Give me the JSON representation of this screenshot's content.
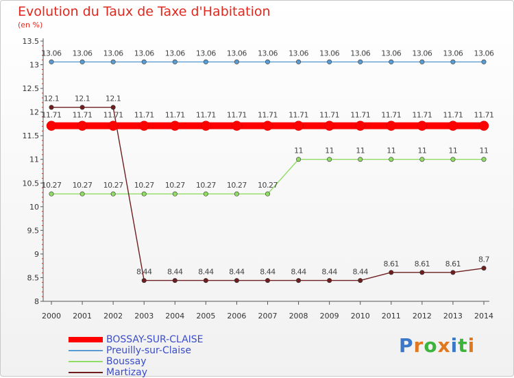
{
  "chart_data": {
    "type": "line",
    "title": "Evolution du Taux de Taxe d'Habitation",
    "subtitle": "(en %)",
    "ylim": [
      8,
      13.5
    ],
    "yticks": [
      "8",
      "8.5",
      "9",
      "9.5",
      "10",
      "10.5",
      "11",
      "11.5",
      "12",
      "12.5",
      "13",
      "13.5"
    ],
    "categories": [
      "2000",
      "2001",
      "2002",
      "2003",
      "2004",
      "2005",
      "2006",
      "2007",
      "2008",
      "2009",
      "2010",
      "2011",
      "2012",
      "2013",
      "2014"
    ],
    "series": [
      {
        "name": "BOSSAY-SUR-CLAISE",
        "color": "#ff0000",
        "emphasis": true,
        "values": [
          11.71,
          11.71,
          11.71,
          11.71,
          11.71,
          11.71,
          11.71,
          11.71,
          11.71,
          11.71,
          11.71,
          11.71,
          11.71,
          11.71,
          11.71
        ],
        "labels": [
          "11.71",
          "11.71",
          "11.71",
          "11.71",
          "11.71",
          "11.71",
          "11.71",
          "11.71",
          "11.71",
          "11.71",
          "11.71",
          "11.71",
          "11.71",
          "11.71",
          "11.71"
        ]
      },
      {
        "name": "Preuilly-sur-Claise",
        "color": "#5a9cd2",
        "values": [
          13.06,
          13.06,
          13.06,
          13.06,
          13.06,
          13.06,
          13.06,
          13.06,
          13.06,
          13.06,
          13.06,
          13.06,
          13.06,
          13.06,
          13.06
        ],
        "labels": [
          "13.06",
          "13.06",
          "13.06",
          "13.06",
          "13.06",
          "13.06",
          "13.06",
          "13.06",
          "13.06",
          "13.06",
          "13.06",
          "13.06",
          "13.06",
          "13.06",
          "13.06"
        ]
      },
      {
        "name": "Boussay",
        "color": "#90dc64",
        "values": [
          10.27,
          10.27,
          10.27,
          10.27,
          10.27,
          10.27,
          10.27,
          10.27,
          11,
          11,
          11,
          11,
          11,
          11,
          11
        ],
        "labels": [
          "10.27",
          "10.27",
          "10.27",
          "10.27",
          "10.27",
          "10.27",
          "10.27",
          "10.27",
          "11",
          "11",
          "11",
          "11",
          "11",
          "11",
          "11"
        ]
      },
      {
        "name": "Martizay",
        "color": "#6e1e1e",
        "values": [
          12.1,
          12.1,
          12.1,
          8.44,
          8.44,
          8.44,
          8.44,
          8.44,
          8.44,
          8.44,
          8.44,
          8.61,
          8.61,
          8.61,
          8.7
        ],
        "labels": [
          "12.1",
          "12.1",
          "12.1",
          "8.44",
          "8.44",
          "8.44",
          "8.44",
          "8.44",
          "8.44",
          "8.44",
          "8.44",
          "8.61",
          "8.61",
          "8.61",
          "8.7"
        ]
      }
    ],
    "legend": [
      "BOSSAY-SUR-CLAISE",
      "Preuilly-sur-Claise",
      "Boussay",
      "Martizay"
    ],
    "grid": false,
    "legend_position": "bottom-left"
  },
  "logo": {
    "text": "Proxiti",
    "letters": [
      "P",
      "r",
      "o",
      "x",
      "i",
      "t",
      "i"
    ],
    "colors": [
      "#3c78c8",
      "#e07820",
      "#3cb43c",
      "#e07820",
      "#3c78c8",
      "#3cb43c",
      "#e07820"
    ]
  }
}
